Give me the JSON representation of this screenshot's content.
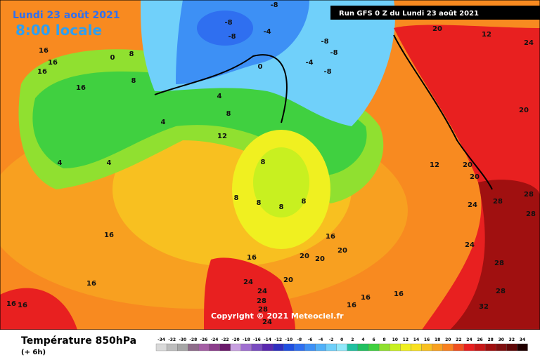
{
  "header": {
    "title": "Lundi 23 août 2021",
    "time": "8:00 locale",
    "run": "Run GFS 0 Z du Lundi 23 août 2021"
  },
  "copyright": "Copyright © 2021 Meteociel.fr",
  "footer": {
    "title": "Température 850hPa",
    "step": "(+ 6h)"
  },
  "color_scale": {
    "values": [
      -34,
      -32,
      -30,
      -28,
      -26,
      -24,
      -22,
      -20,
      -18,
      -16,
      -14,
      -12,
      -10,
      -8,
      -6,
      -4,
      -2,
      0,
      2,
      4,
      6,
      8,
      10,
      12,
      14,
      16,
      18,
      20,
      22,
      24,
      26,
      28,
      30,
      32,
      34
    ],
    "colors": [
      "#d9d9d9",
      "#bdbdbd",
      "#a6a6a6",
      "#8e6c8a",
      "#a45ea4",
      "#8b3d8b",
      "#6a1a6a",
      "#c8a0e0",
      "#a070d0",
      "#7a4cc0",
      "#5a2ab0",
      "#3030c0",
      "#2050e0",
      "#2f6ff0",
      "#3d90f5",
      "#50b0f8",
      "#70d0fa",
      "#90e8fa",
      "#20c0a0",
      "#20c060",
      "#40d040",
      "#90e030",
      "#c8f020",
      "#f0f020",
      "#f8e020",
      "#f8c020",
      "#f8a020",
      "#f88020",
      "#f05020",
      "#e82020",
      "#c81818",
      "#a01010",
      "#801010",
      "#600808",
      "#200000"
    ]
  },
  "map_labels": [
    "16",
    "16",
    "16",
    "16",
    "16",
    "4",
    "0",
    "8",
    "8",
    "4",
    "4",
    "4",
    "8",
    "12",
    "-8",
    "-8",
    "-8",
    "-8",
    "-4",
    "0",
    "-4",
    "-8",
    "-8",
    "20",
    "12",
    "24",
    "20",
    "20",
    "12",
    "20",
    "24",
    "28",
    "28",
    "28",
    "24",
    "28",
    "8",
    "8",
    "8",
    "8",
    "8",
    "16",
    "20",
    "20",
    "16",
    "20",
    "24",
    "24",
    "28",
    "28",
    "24",
    "16",
    "16",
    "16",
    "16",
    "16",
    "16",
    "20",
    "28",
    "32"
  ]
}
